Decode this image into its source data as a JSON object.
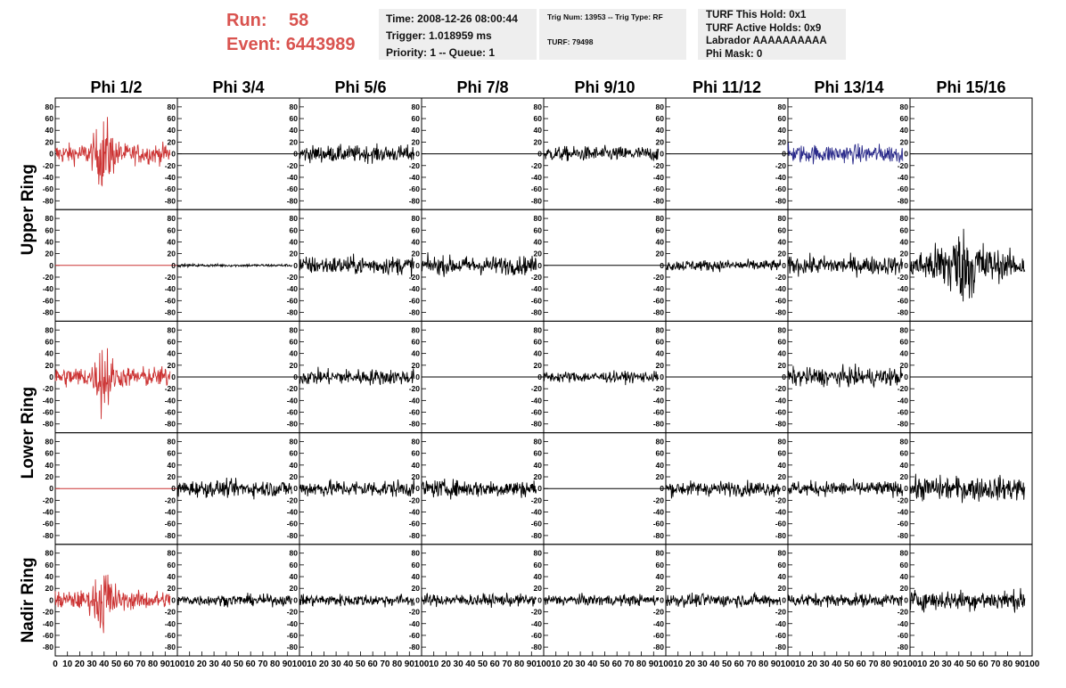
{
  "header": {
    "run_label": "Run:",
    "run_value": "58",
    "event_label": "Event:",
    "event_value": "6443989",
    "box1": {
      "time": "Time: 2008-12-26 08:00:44",
      "trigger": "Trigger: 1.018959 ms",
      "priority": "Priority: 1 -- Queue: 1"
    },
    "box2": {
      "trig": "Trig Num: 13953 -- Trig Type: RF",
      "turf": "TURF: 79498"
    },
    "box3": {
      "hold": "TURF This Hold: 0x1",
      "active": "TURF Active Holds: 0x9",
      "labrador": "Labrador AAAAAAAAAA",
      "phimask": "Phi Mask: 0"
    }
  },
  "colors": {
    "triggered_trace": "#cc3333",
    "highlight_trace": "#2a2a8a",
    "normal_trace": "#000000",
    "header_accent": "#d9534f"
  },
  "chart_data": {
    "type": "line",
    "layout": "grid 5 rows x 8 columns of waveform panels",
    "columns": [
      "Phi 1/2",
      "Phi 3/4",
      "Phi 5/6",
      "Phi 7/8",
      "Phi 9/10",
      "Phi 11/12",
      "Phi 13/14",
      "Phi 15/16"
    ],
    "ring_labels": [
      {
        "label": "Upper Ring",
        "rows": [
          0,
          1
        ]
      },
      {
        "label": "Lower Ring",
        "rows": [
          2,
          3
        ]
      },
      {
        "label": "Nadir Ring",
        "rows": [
          4
        ]
      }
    ],
    "ylim": [
      -95,
      95
    ],
    "xlim": [
      0,
      100
    ],
    "y_ticks": [
      -80,
      -60,
      -40,
      -20,
      0,
      20,
      40,
      60,
      80
    ],
    "x_ticks": [
      0,
      10,
      20,
      30,
      40,
      50,
      60,
      70,
      80,
      90,
      100
    ],
    "x_tick_labels": [
      "0",
      "10",
      "20",
      "30",
      "40",
      "50",
      "60",
      "70",
      "80",
      "90",
      "100"
    ],
    "panels": [
      [
        {
          "color": "triggered",
          "amplitude": 22,
          "burst": {
            "center": 40,
            "width": 8,
            "amp": 60
          }
        },
        {
          "color": "normal",
          "amplitude": 0
        },
        {
          "color": "normal",
          "amplitude": 18
        },
        {
          "color": "normal",
          "amplitude": 0
        },
        {
          "color": "normal",
          "amplitude": 16
        },
        {
          "color": "normal",
          "amplitude": 0
        },
        {
          "color": "highlight",
          "amplitude": 20
        },
        {
          "color": "normal",
          "amplitude": 0
        }
      ],
      [
        {
          "color": "triggered",
          "amplitude": 0
        },
        {
          "color": "normal",
          "amplitude": 3
        },
        {
          "color": "normal",
          "amplitude": 20
        },
        {
          "color": "normal",
          "amplitude": 20
        },
        {
          "color": "normal",
          "amplitude": 0
        },
        {
          "color": "normal",
          "amplitude": 12
        },
        {
          "color": "normal",
          "amplitude": 20
        },
        {
          "color": "normal",
          "amplitude": 28,
          "burst": {
            "center": 42,
            "width": 20,
            "amp": 55
          }
        }
      ],
      [
        {
          "color": "triggered",
          "amplitude": 22,
          "burst": {
            "center": 40,
            "width": 6,
            "amp": 75
          }
        },
        {
          "color": "normal",
          "amplitude": 0
        },
        {
          "color": "normal",
          "amplitude": 17
        },
        {
          "color": "normal",
          "amplitude": 0
        },
        {
          "color": "normal",
          "amplitude": 12
        },
        {
          "color": "normal",
          "amplitude": 0
        },
        {
          "color": "normal",
          "amplitude": 20
        },
        {
          "color": "normal",
          "amplitude": 0
        }
      ],
      [
        {
          "color": "triggered",
          "amplitude": 0
        },
        {
          "color": "normal",
          "amplitude": 18
        },
        {
          "color": "normal",
          "amplitude": 18
        },
        {
          "color": "normal",
          "amplitude": 19
        },
        {
          "color": "normal",
          "amplitude": 0
        },
        {
          "color": "normal",
          "amplitude": 16
        },
        {
          "color": "normal",
          "amplitude": 16
        },
        {
          "color": "normal",
          "amplitude": 26
        }
      ],
      [
        {
          "color": "triggered",
          "amplitude": 20,
          "burst": {
            "center": 40,
            "width": 8,
            "amp": 60
          }
        },
        {
          "color": "normal",
          "amplitude": 12
        },
        {
          "color": "normal",
          "amplitude": 13
        },
        {
          "color": "normal",
          "amplitude": 13
        },
        {
          "color": "normal",
          "amplitude": 12
        },
        {
          "color": "normal",
          "amplitude": 14
        },
        {
          "color": "normal",
          "amplitude": 14
        },
        {
          "color": "normal",
          "amplitude": 22
        }
      ]
    ]
  }
}
